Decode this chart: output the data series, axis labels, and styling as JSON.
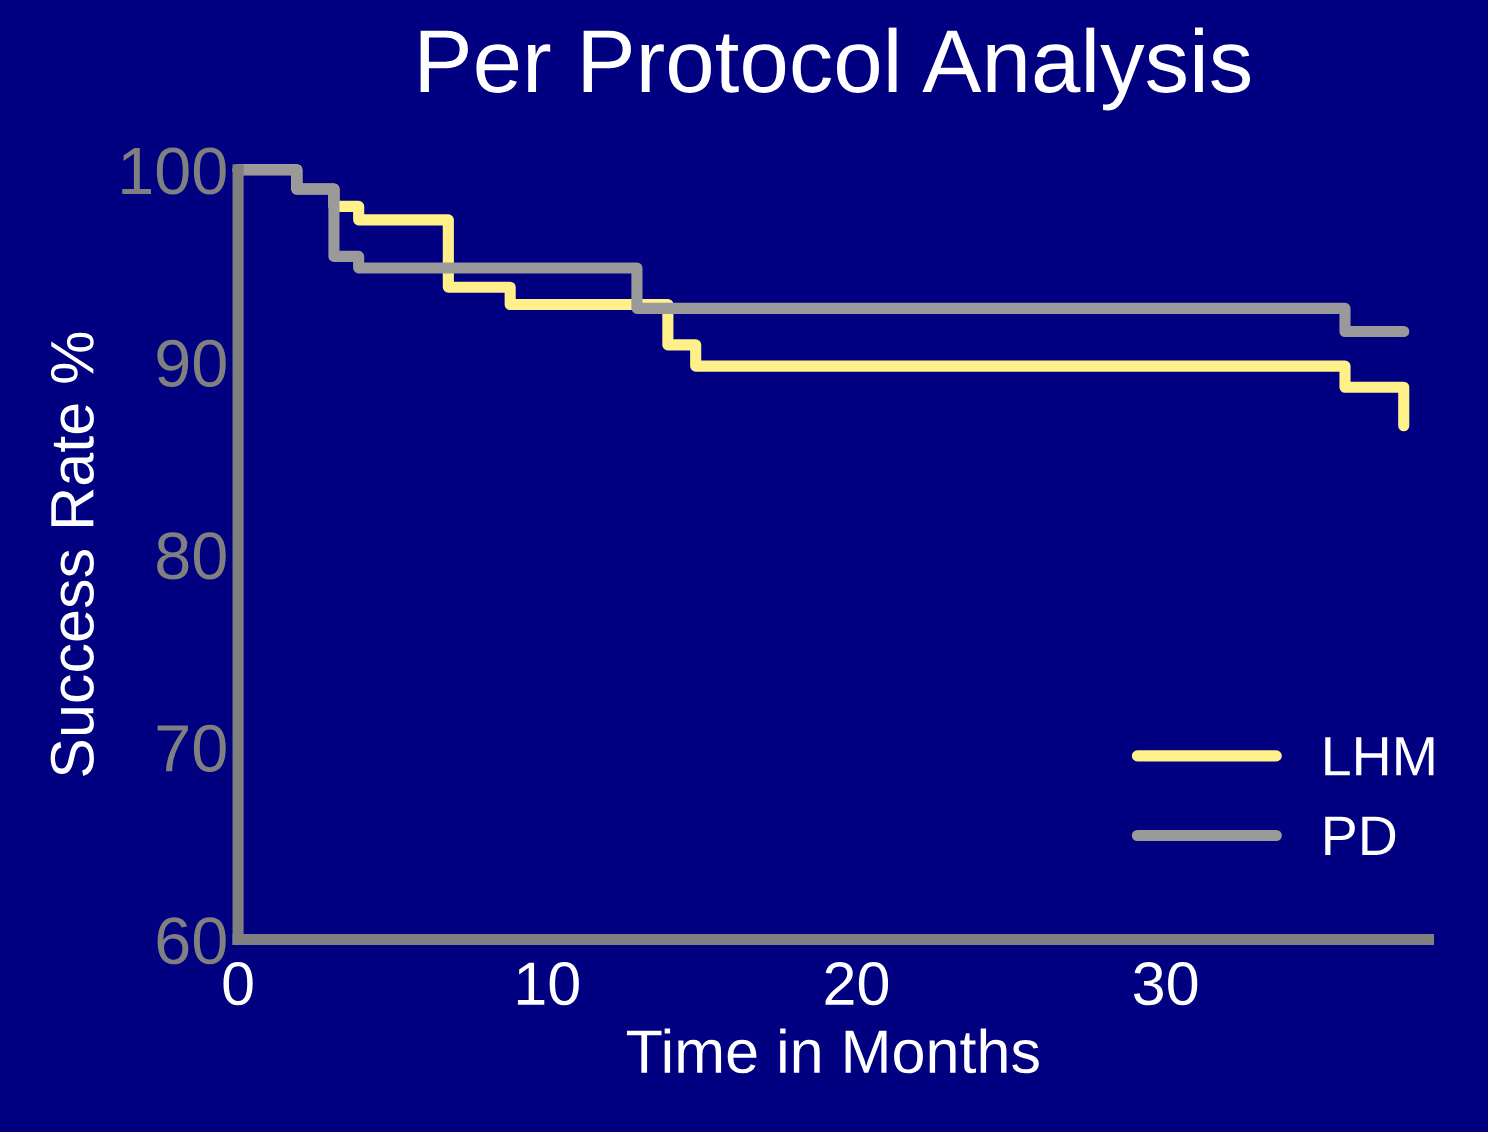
{
  "chart_data": {
    "type": "step",
    "title": "Per Protocol Analysis",
    "xlabel": "Time in Months",
    "ylabel": "Success Rate %",
    "xlim": [
      0,
      38.5
    ],
    "xticks": [
      0,
      10,
      20,
      30
    ],
    "ylim": [
      60,
      100
    ],
    "yticks": [
      60,
      70,
      80,
      90,
      100
    ],
    "grid": false,
    "legend": "bottom right",
    "series": [
      {
        "name": "LHM",
        "color": "#fff08a",
        "x": [
          0,
          1.9,
          3.1,
          3.9,
          6.8,
          8.8,
          13.9,
          14.8,
          35.8,
          37.7,
          37.7
        ],
        "values": [
          100,
          99,
          98.1,
          97.4,
          93.9,
          93,
          90.9,
          89.8,
          88.7,
          88.7,
          86.7
        ]
      },
      {
        "name": "PD",
        "color": "#9a9a9a",
        "x": [
          0,
          1.9,
          3.1,
          3.9,
          12.9,
          35.8,
          37.7
        ],
        "values": [
          100,
          99,
          95.5,
          94.9,
          92.8,
          91.6,
          91.6
        ]
      }
    ]
  }
}
